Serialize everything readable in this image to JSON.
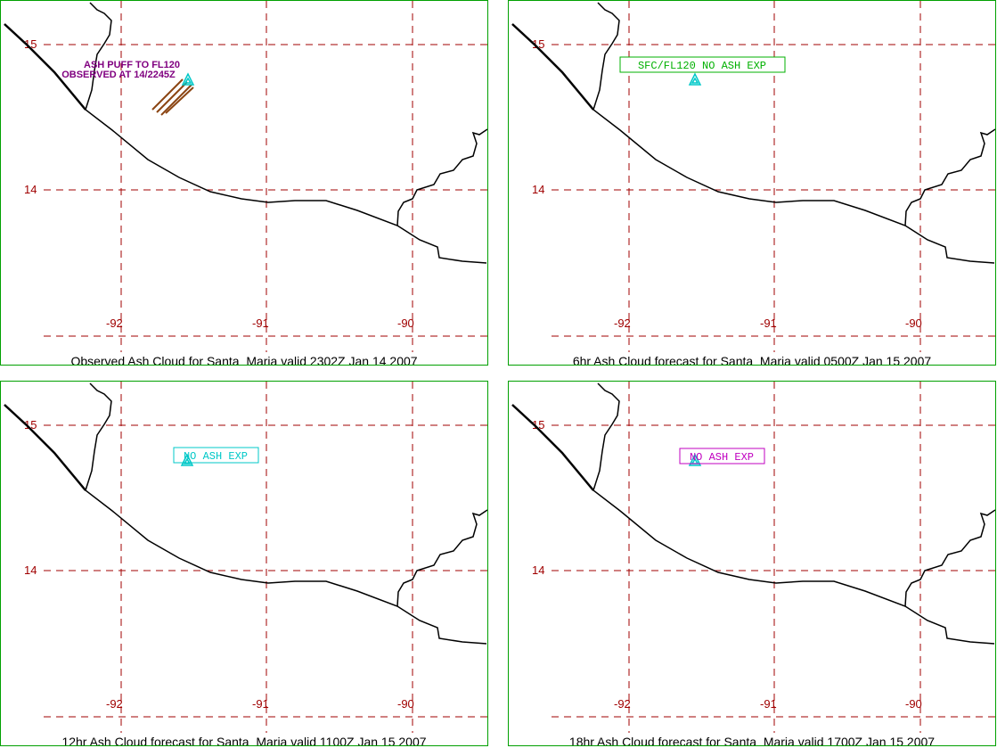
{
  "colors": {
    "grid": "#a00000",
    "coast": "#000000",
    "frame": "#00a000",
    "vent": "#00c8c8",
    "obs_text": "#800080",
    "ash_hatch": "#8b4513",
    "label_green": "#00b000",
    "label_cyan": "#00c8c8",
    "label_magenta": "#c000c0"
  },
  "axes": {
    "lat_labels": [
      "15",
      "14"
    ],
    "lon_labels": [
      "-92",
      "-91",
      "-90"
    ]
  },
  "vent_icon": "volcano-triangle-icon",
  "panels": [
    {
      "caption": "Observed Ash Cloud for Santa  Maria valid 2302Z Jan 14 2007",
      "annotation": [
        "ASH PUFF TO FL120",
        "OBSERVED AT 14/2245Z"
      ],
      "box_label": ""
    },
    {
      "caption": "6hr Ash Cloud forecast for Santa  Maria valid 0500Z Jan 15 2007",
      "annotation": [],
      "box_label": "SFC/FL120 NO ASH EXP"
    },
    {
      "caption": "12hr Ash Cloud forecast for Santa  Maria valid 1100Z Jan 15 2007",
      "annotation": [],
      "box_label": "NO ASH EXP"
    },
    {
      "caption": "18hr Ash Cloud forecast for Santa  Maria valid 1700Z Jan 15 2007",
      "annotation": [],
      "box_label": "NO ASH EXP"
    }
  ]
}
